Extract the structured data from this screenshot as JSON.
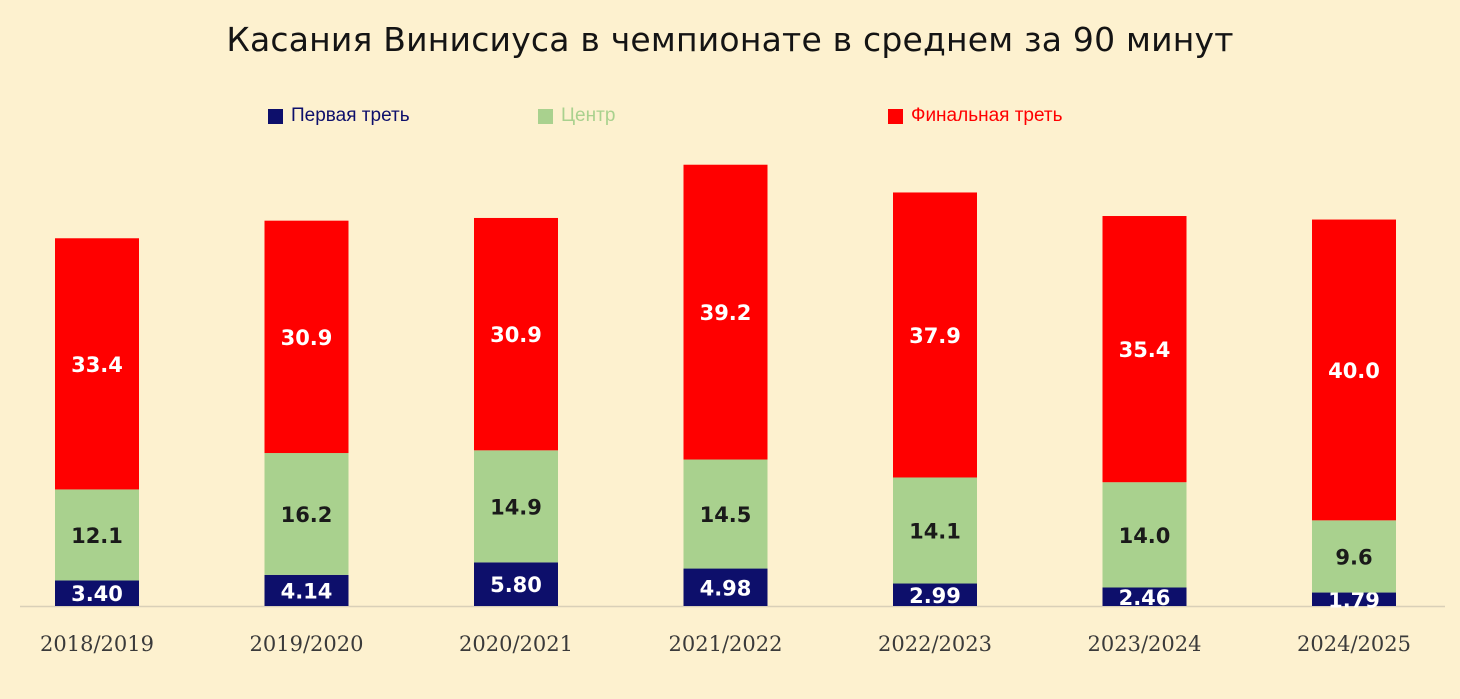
{
  "chart_data": {
    "type": "bar",
    "stacked": true,
    "title": "Касания Винисиуса в чемпионате в среднем за 90 минут",
    "xlabel": "",
    "ylabel": "",
    "ylim": [
      0,
      60
    ],
    "grid": false,
    "legend_position": "top",
    "categories": [
      "2018/2019",
      "2019/2020",
      "2020/2021",
      "2021/2022",
      "2022/2023",
      "2023/2024",
      "2024/2025"
    ],
    "series": [
      {
        "name": "Первая треть",
        "color": "#0d0f6b",
        "label_color": "#ffffff",
        "values": [
          3.4,
          4.14,
          5.8,
          4.98,
          2.99,
          2.46,
          1.79
        ],
        "labels": [
          "3.40",
          "4.14",
          "5.80",
          "4.98",
          "2.99",
          "2.46",
          "1.79"
        ]
      },
      {
        "name": "Центр",
        "color": "#a9d18e",
        "label_color": "#1a1a1a",
        "values": [
          12.1,
          16.2,
          14.9,
          14.5,
          14.1,
          14.0,
          9.6
        ],
        "labels": [
          "12.1",
          "16.2",
          "14.9",
          "14.5",
          "14.1",
          "14.0",
          "9.6"
        ]
      },
      {
        "name": "Финальная треть",
        "color": "#ff0000",
        "label_color": "#ffffff",
        "values": [
          33.4,
          30.9,
          30.9,
          39.2,
          37.9,
          35.4,
          40.0
        ],
        "labels": [
          "33.4",
          "30.9",
          "30.9",
          "39.2",
          "37.9",
          "35.4",
          "40.0"
        ]
      }
    ]
  },
  "legend": {
    "items": [
      {
        "label": "Первая треть",
        "color": "#0d0f6b",
        "text_color": "#0d0f6b"
      },
      {
        "label": "Центр",
        "color": "#a9d18e",
        "text_color": "#a9d18e"
      },
      {
        "label": "Финальная треть",
        "color": "#ff0000",
        "text_color": "#ff0000"
      }
    ]
  },
  "colors": {
    "background": "#fdf1cf",
    "axis": "#d9d0b8"
  }
}
